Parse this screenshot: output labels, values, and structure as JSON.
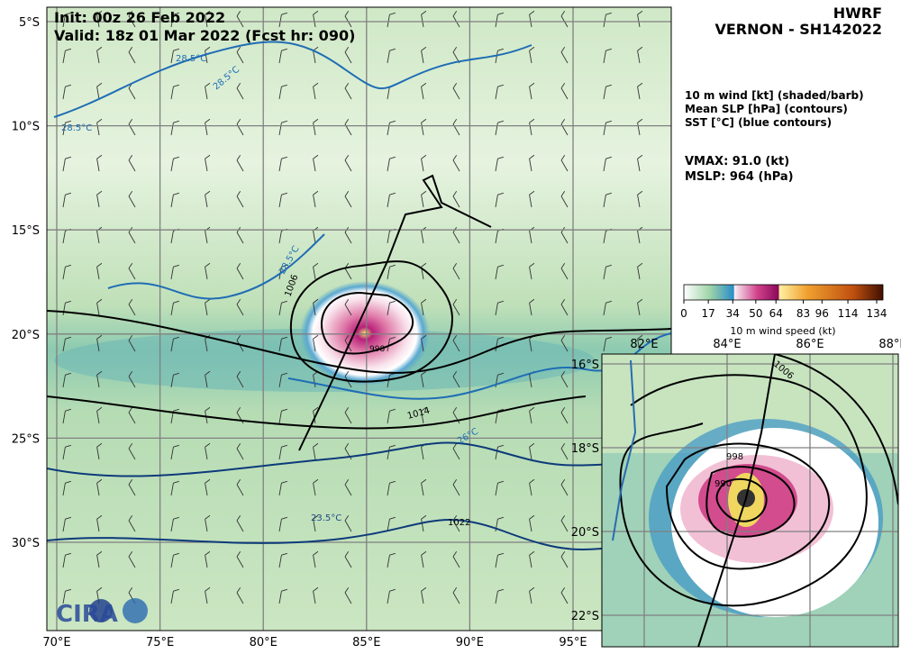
{
  "header": {
    "init": "Init:   00z 26 Feb 2022",
    "valid": "Valid: 18z 01 Mar 2022 (Fcst hr: 090)",
    "model": "HWRF",
    "storm": "VERNON - SH142022"
  },
  "legend": {
    "lines": [
      "10 m wind [kt] (shaded/barb)",
      "Mean SLP [hPa] (contours)",
      "SST [°C] (blue contours)"
    ],
    "vmax": "VMAX:  91.0 (kt)",
    "mslp": "MSLP:  964 (hPa)"
  },
  "colorbar": {
    "ticks": [
      0,
      17,
      34,
      50,
      64,
      83,
      96,
      114,
      134
    ],
    "label": "10 m wind speed (kt)"
  },
  "main_map": {
    "lat_labels": [
      "5°S",
      "10°S",
      "15°S",
      "20°S",
      "25°S",
      "30°S"
    ],
    "lon_labels": [
      "70°E",
      "75°E",
      "80°E",
      "85°E",
      "90°E",
      "95°E"
    ],
    "contour_labels": [
      "28.5°C",
      "28.5°C",
      "28.5°C",
      "28.5°C",
      "1006",
      "998",
      "1014",
      "26°C",
      "23.5°C",
      "1022"
    ]
  },
  "inset_map": {
    "lon_labels": [
      "82°E",
      "84°E",
      "86°E",
      "88°E"
    ],
    "lat_labels": [
      "16°S",
      "18°S",
      "20°S",
      "22°S"
    ],
    "contour_labels": [
      "1006",
      "998",
      "990"
    ]
  },
  "logo": "CIRA"
}
